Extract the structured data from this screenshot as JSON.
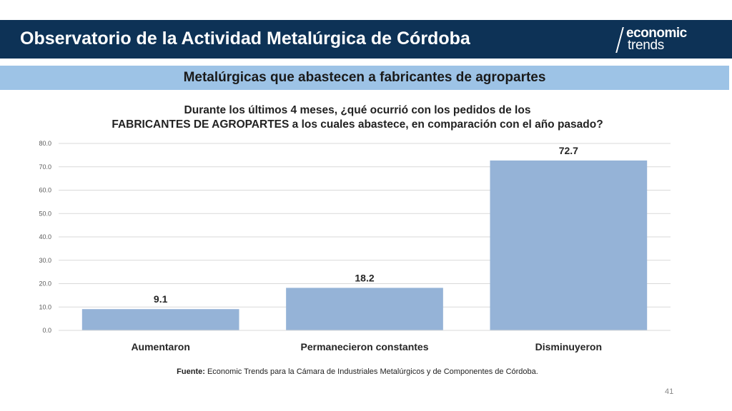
{
  "header": {
    "title": "Observatorio de la Actividad Metalúrgica de Córdoba",
    "logo_top": "economic",
    "logo_bottom": "trends",
    "color": "#0d3256"
  },
  "subtitle": {
    "text": "Metalúrgicas que abastecen a fabricantes de agropartes",
    "color": "#9dc3e6"
  },
  "chart_data": {
    "type": "bar",
    "title_lines": [
      "Durante los últimos 4 meses, ¿qué ocurrió con los pedidos de los",
      "FABRICANTES DE AGROPARTES a los cuales abastece, en comparación con el año pasado?"
    ],
    "categories": [
      "Aumentaron",
      "Permanecieron constantes",
      "Disminuyeron"
    ],
    "values": [
      9.1,
      18.2,
      72.7
    ],
    "value_labels": [
      "9.1",
      "18.2",
      "72.7"
    ],
    "y_ticks": [
      "0.0",
      "10.0",
      "20.0",
      "30.0",
      "40.0",
      "50.0",
      "60.0",
      "70.0",
      "80.0"
    ],
    "ylim": [
      0,
      80
    ],
    "grid": true,
    "legend": "none",
    "bar_color": "#95b3d7",
    "xlabel": "",
    "ylabel": ""
  },
  "footer": {
    "source_label": "Fuente:",
    "source_text": " Economic Trends para la Cámara de Industriales Metalúrgicos y de Componentes de Córdoba.",
    "page_number": "41"
  }
}
